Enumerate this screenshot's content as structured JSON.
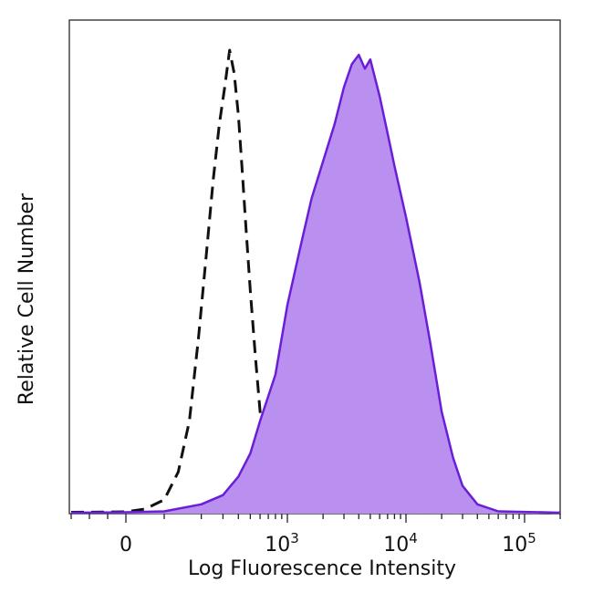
{
  "chart_data": {
    "type": "area",
    "title": "",
    "xlabel": "Log Fluorescence Intensity",
    "ylabel": "Relative Cell Number",
    "x_scale": "biexponential",
    "xlim": [
      -300,
      200000
    ],
    "ylim": [
      0,
      100
    ],
    "grid": false,
    "legend": "none",
    "x_ticks": [
      {
        "value": 0,
        "base": "0",
        "exp": ""
      },
      {
        "value": 1000,
        "base": "10",
        "exp": "3"
      },
      {
        "value": 10000,
        "base": "10",
        "exp": "4"
      },
      {
        "value": 100000,
        "base": "10",
        "exp": "5"
      }
    ],
    "series": [
      {
        "style": "dashed",
        "color": "#111111",
        "x": [
          -300,
          0,
          50,
          100,
          130,
          160,
          190,
          220,
          250,
          280,
          310,
          340,
          370,
          400,
          430,
          460,
          500,
          550,
          600,
          700,
          800,
          1000,
          1500,
          3000,
          10000,
          200000
        ],
        "y": [
          0.3,
          0.4,
          1,
          3,
          9,
          20,
          38,
          56,
          72,
          84,
          92,
          100,
          95,
          86,
          74,
          62,
          48,
          34,
          22,
          12,
          6,
          2,
          1,
          0.5,
          0.3,
          0.2
        ]
      },
      {
        "style": "filled",
        "color": "#6a1fd6",
        "fill": "#b98ff0",
        "x": [
          -300,
          0,
          100,
          200,
          300,
          400,
          500,
          600,
          800,
          1000,
          1300,
          1600,
          2000,
          2500,
          3000,
          3500,
          4000,
          4500,
          5000,
          6000,
          7000,
          8000,
          10000,
          13000,
          16000,
          20000,
          25000,
          30000,
          40000,
          60000,
          200000
        ],
        "y": [
          0.2,
          0.3,
          0.5,
          2,
          4,
          8,
          13,
          20,
          30,
          45,
          58,
          68,
          76,
          84,
          92,
          97,
          99,
          96,
          98,
          90,
          82,
          75,
          64,
          50,
          37,
          22,
          12,
          6,
          2,
          0.5,
          0.2
        ]
      }
    ]
  }
}
